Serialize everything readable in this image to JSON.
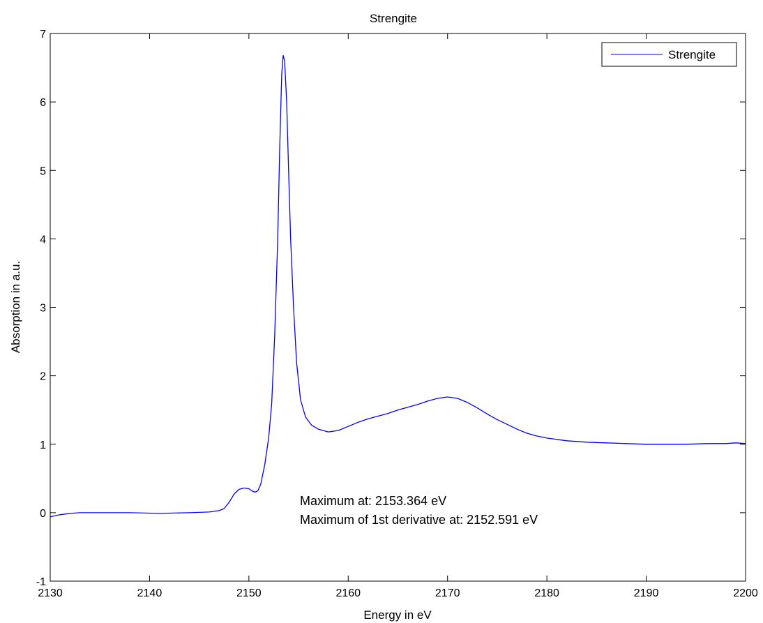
{
  "chart_data": {
    "type": "line",
    "title": "Strengite",
    "xlabel": "Energy in eV",
    "ylabel": "Absorption in a.u.",
    "xlim": [
      2130,
      2200
    ],
    "ylim": [
      -1,
      7
    ],
    "xticks": [
      2130,
      2140,
      2150,
      2160,
      2170,
      2180,
      2190,
      2200
    ],
    "yticks": [
      -1,
      0,
      1,
      2,
      3,
      4,
      5,
      6,
      7
    ],
    "grid": false,
    "legend": {
      "position": "top-right",
      "entries": [
        "Strengite"
      ]
    },
    "annotations": [
      "Maximum at: 2153.364 eV",
      "Maximum of 1st derivative at: 2152.591 eV"
    ],
    "series": [
      {
        "name": "Strengite",
        "color": "#0000ff",
        "points": [
          [
            2130,
            -0.06
          ],
          [
            2131,
            -0.03
          ],
          [
            2132,
            -0.01
          ],
          [
            2133,
            0.0
          ],
          [
            2135,
            0.0
          ],
          [
            2138,
            0.0
          ],
          [
            2141,
            -0.01
          ],
          [
            2144,
            0.0
          ],
          [
            2146,
            0.01
          ],
          [
            2147,
            0.03
          ],
          [
            2147.5,
            0.06
          ],
          [
            2148,
            0.15
          ],
          [
            2148.5,
            0.27
          ],
          [
            2149,
            0.34
          ],
          [
            2149.5,
            0.36
          ],
          [
            2150,
            0.35
          ],
          [
            2150.3,
            0.32
          ],
          [
            2150.6,
            0.3
          ],
          [
            2150.9,
            0.32
          ],
          [
            2151.2,
            0.42
          ],
          [
            2151.6,
            0.7
          ],
          [
            2152.0,
            1.1
          ],
          [
            2152.3,
            1.6
          ],
          [
            2152.6,
            2.6
          ],
          [
            2152.9,
            4.0
          ],
          [
            2153.1,
            5.3
          ],
          [
            2153.3,
            6.4
          ],
          [
            2153.45,
            6.68
          ],
          [
            2153.6,
            6.6
          ],
          [
            2153.8,
            6.0
          ],
          [
            2154.0,
            5.0
          ],
          [
            2154.2,
            4.0
          ],
          [
            2154.5,
            3.0
          ],
          [
            2154.8,
            2.2
          ],
          [
            2155.2,
            1.65
          ],
          [
            2155.7,
            1.4
          ],
          [
            2156.3,
            1.28
          ],
          [
            2157,
            1.22
          ],
          [
            2158,
            1.18
          ],
          [
            2159,
            1.2
          ],
          [
            2160,
            1.26
          ],
          [
            2161,
            1.32
          ],
          [
            2162,
            1.37
          ],
          [
            2163,
            1.41
          ],
          [
            2164,
            1.45
          ],
          [
            2165,
            1.5
          ],
          [
            2166,
            1.54
          ],
          [
            2167,
            1.58
          ],
          [
            2168,
            1.63
          ],
          [
            2169,
            1.67
          ],
          [
            2170,
            1.69
          ],
          [
            2171,
            1.67
          ],
          [
            2172,
            1.61
          ],
          [
            2173,
            1.53
          ],
          [
            2174,
            1.44
          ],
          [
            2175,
            1.36
          ],
          [
            2176,
            1.29
          ],
          [
            2177,
            1.22
          ],
          [
            2178,
            1.16
          ],
          [
            2179,
            1.12
          ],
          [
            2180,
            1.09
          ],
          [
            2182,
            1.05
          ],
          [
            2184,
            1.03
          ],
          [
            2186,
            1.02
          ],
          [
            2188,
            1.01
          ],
          [
            2190,
            1.0
          ],
          [
            2192,
            1.0
          ],
          [
            2194,
            1.0
          ],
          [
            2196,
            1.01
          ],
          [
            2198,
            1.01
          ],
          [
            2199,
            1.02
          ],
          [
            2200,
            1.01
          ]
        ]
      }
    ]
  }
}
